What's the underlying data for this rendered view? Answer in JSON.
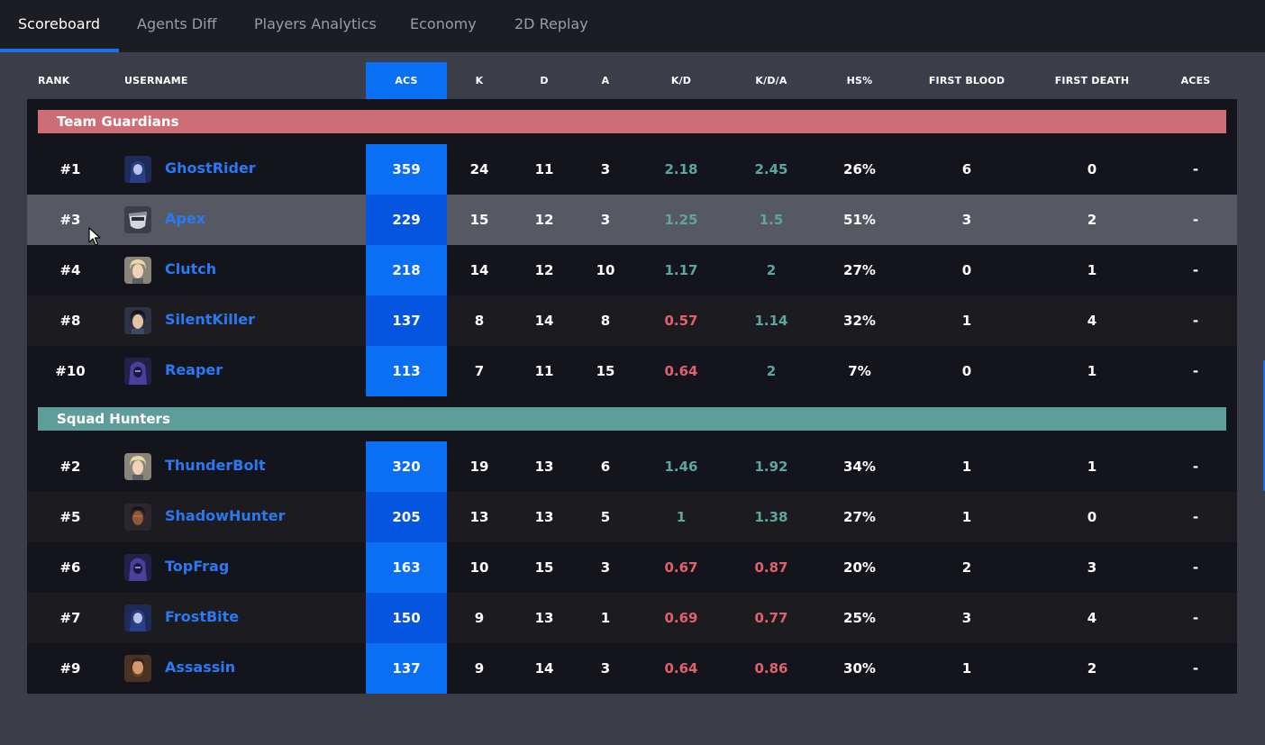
{
  "tabs": [
    {
      "label": "Scoreboard"
    },
    {
      "label": "Agents Diff"
    },
    {
      "label": "Players Analytics"
    },
    {
      "label": "Economy"
    },
    {
      "label": "2D Replay"
    }
  ],
  "active_tab": "Scoreboard",
  "columns": {
    "rank": "RANK",
    "username": "USERNAME",
    "acs": "ACS",
    "k": "K",
    "d": "D",
    "a": "A",
    "kd": "K/D",
    "kda": "K/D/A",
    "hs": "HS%",
    "first_blood": "FIRST BLOOD",
    "first_death": "FIRST DEATH",
    "aces": "ACES"
  },
  "colors": {
    "accent": "#0a6ff5",
    "good": "#5da59f",
    "bad": "#e0606c",
    "team1": "#cd6e76",
    "team2": "#5e9d9a",
    "username": "#2a79f2"
  },
  "teams": [
    {
      "name": "Team Guardians",
      "color": "#cd6e76",
      "players": [
        {
          "rank": "#1",
          "username": "GhostRider",
          "avatar": "agent-portrait-blue-hood",
          "acs": "359",
          "k": "24",
          "d": "11",
          "a": "3",
          "kd": "2.18",
          "kd_status": "good",
          "kda": "2.45",
          "kda_status": "good",
          "hs": "26%",
          "first_blood": "6",
          "first_death": "0",
          "aces": "-"
        },
        {
          "rank": "#3",
          "username": "Apex",
          "avatar": "agent-portrait-mask",
          "acs": "229",
          "k": "15",
          "d": "12",
          "a": "3",
          "kd": "1.25",
          "kd_status": "good",
          "kda": "1.5",
          "kda_status": "good",
          "hs": "51%",
          "first_blood": "3",
          "first_death": "2",
          "aces": "-",
          "hover": true
        },
        {
          "rank": "#4",
          "username": "Clutch",
          "avatar": "agent-portrait-blonde",
          "acs": "218",
          "k": "14",
          "d": "12",
          "a": "10",
          "kd": "1.17",
          "kd_status": "good",
          "kda": "2",
          "kda_status": "good",
          "hs": "27%",
          "first_blood": "0",
          "first_death": "1",
          "aces": "-"
        },
        {
          "rank": "#8",
          "username": "SilentKiller",
          "avatar": "agent-portrait-dark-hair",
          "acs": "137",
          "k": "8",
          "d": "14",
          "a": "8",
          "kd": "0.57",
          "kd_status": "bad",
          "kda": "1.14",
          "kda_status": "good",
          "hs": "32%",
          "first_blood": "1",
          "first_death": "4",
          "aces": "-"
        },
        {
          "rank": "#10",
          "username": "Reaper",
          "avatar": "agent-portrait-purple-hood",
          "acs": "113",
          "k": "7",
          "d": "11",
          "a": "15",
          "kd": "0.64",
          "kd_status": "bad",
          "kda": "2",
          "kda_status": "good",
          "hs": "7%",
          "first_blood": "0",
          "first_death": "1",
          "aces": "-"
        }
      ]
    },
    {
      "name": "Squad Hunters",
      "color": "#5e9d9a",
      "players": [
        {
          "rank": "#2",
          "username": "ThunderBolt",
          "avatar": "agent-portrait-blonde",
          "acs": "320",
          "k": "19",
          "d": "13",
          "a": "6",
          "kd": "1.46",
          "kd_status": "good",
          "kda": "1.92",
          "kda_status": "good",
          "hs": "34%",
          "first_blood": "1",
          "first_death": "1",
          "aces": "-"
        },
        {
          "rank": "#5",
          "username": "ShadowHunter",
          "avatar": "agent-portrait-dark-skin",
          "acs": "205",
          "k": "13",
          "d": "13",
          "a": "5",
          "kd": "1",
          "kd_status": "good",
          "kda": "1.38",
          "kda_status": "good",
          "hs": "27%",
          "first_blood": "1",
          "first_death": "0",
          "aces": "-"
        },
        {
          "rank": "#6",
          "username": "TopFrag",
          "avatar": "agent-portrait-purple-hood",
          "acs": "163",
          "k": "10",
          "d": "15",
          "a": "3",
          "kd": "0.67",
          "kd_status": "bad",
          "kda": "0.87",
          "kda_status": "bad",
          "hs": "20%",
          "first_blood": "2",
          "first_death": "3",
          "aces": "-"
        },
        {
          "rank": "#7",
          "username": "FrostBite",
          "avatar": "agent-portrait-blue-hood",
          "acs": "150",
          "k": "9",
          "d": "13",
          "a": "1",
          "kd": "0.69",
          "kd_status": "bad",
          "kda": "0.77",
          "kda_status": "bad",
          "hs": "25%",
          "first_blood": "3",
          "first_death": "4",
          "aces": "-"
        },
        {
          "rank": "#9",
          "username": "Assassin",
          "avatar": "agent-portrait-bearded",
          "acs": "137",
          "k": "9",
          "d": "14",
          "a": "3",
          "kd": "0.64",
          "kd_status": "bad",
          "kda": "0.86",
          "kda_status": "bad",
          "hs": "30%",
          "first_blood": "1",
          "first_death": "2",
          "aces": "-"
        }
      ]
    }
  ]
}
